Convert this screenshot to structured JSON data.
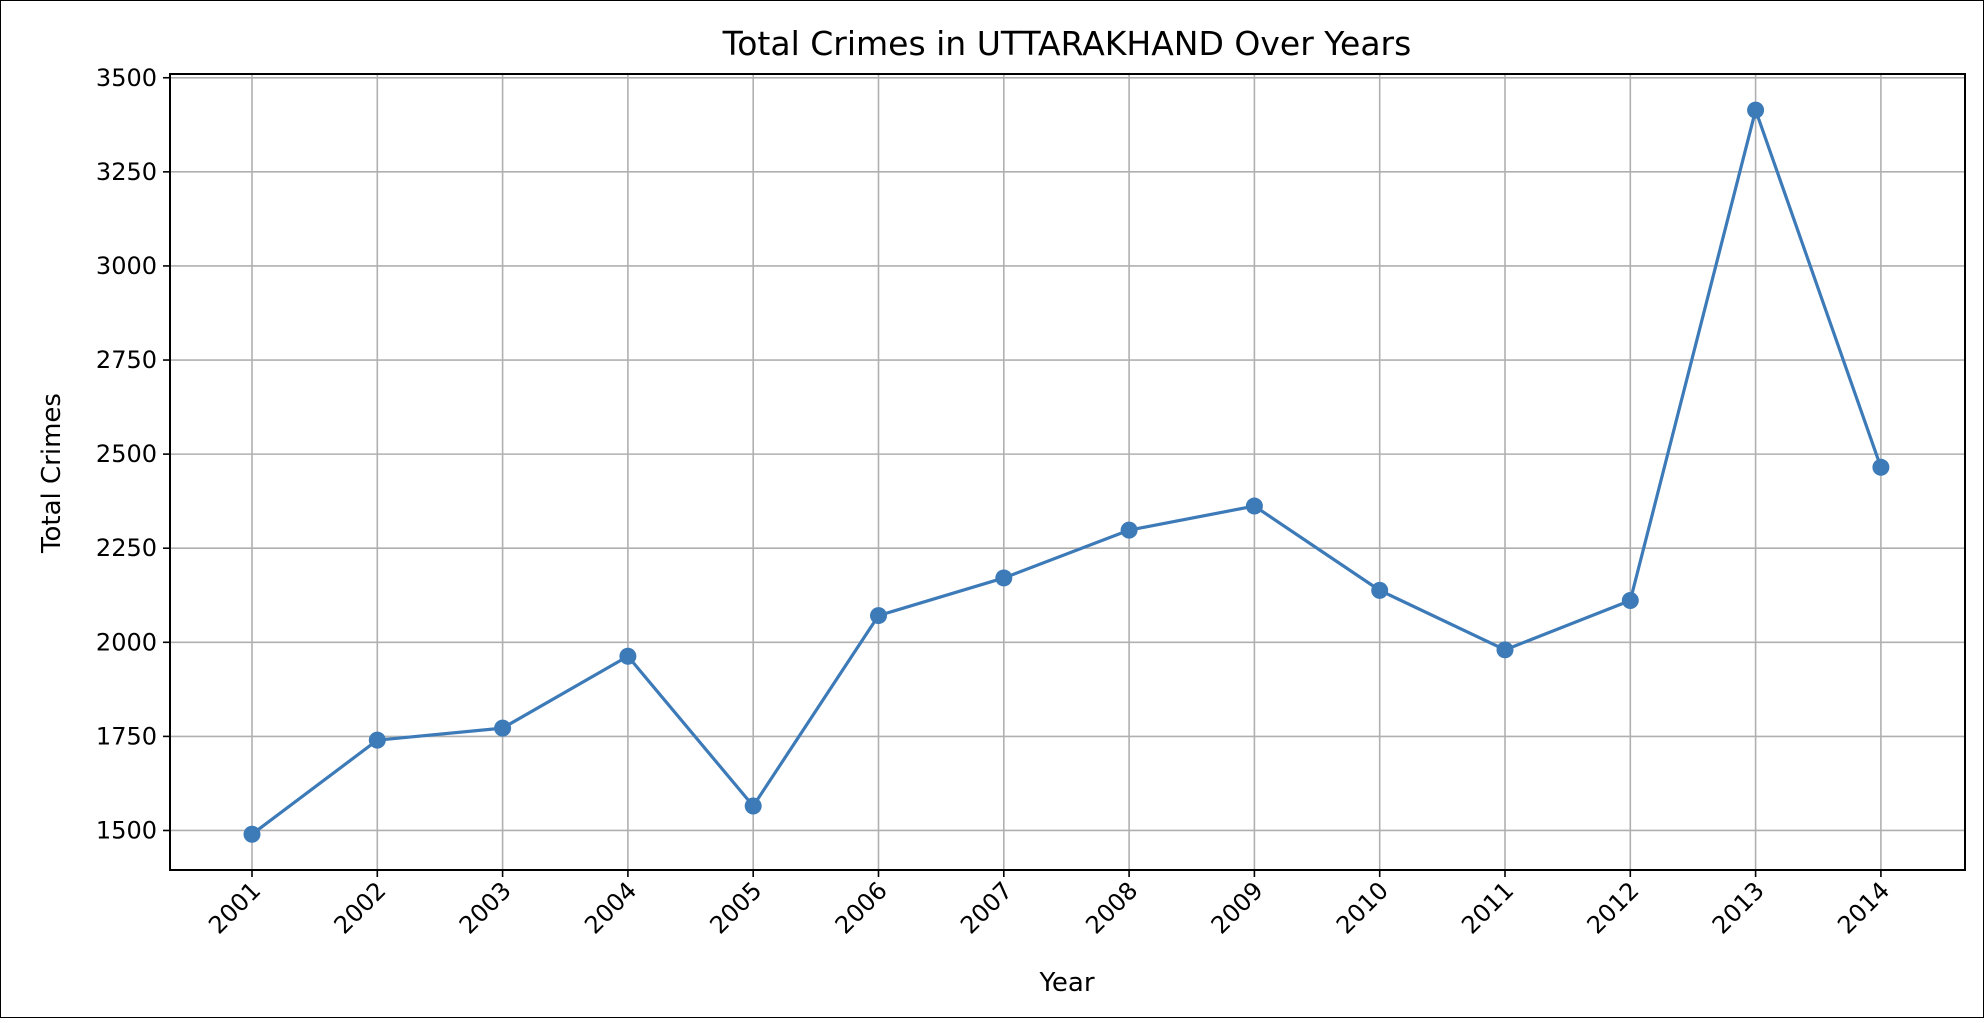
{
  "chart_data": {
    "type": "line",
    "title": "Total Crimes in UTTARAKHAND Over Years",
    "xlabel": "Year",
    "ylabel": "Total Crimes",
    "x": [
      "2001",
      "2002",
      "2003",
      "2004",
      "2005",
      "2006",
      "2007",
      "2008",
      "2009",
      "2010",
      "2011",
      "2012",
      "2013",
      "2014"
    ],
    "series": [
      {
        "values": [
          1490,
          1740,
          1772,
          1963,
          1565,
          2071,
          2171,
          2298,
          2362,
          2138,
          1980,
          2111,
          3414,
          2465
        ],
        "color": "#3d7ab8",
        "marker": "circle"
      }
    ],
    "ylim": [
      1395,
      3510
    ],
    "yticks": [
      1500,
      1750,
      2000,
      2250,
      2500,
      2750,
      3000,
      3250,
      3500
    ],
    "ytick_labels": [
      "1500",
      "1750",
      "2000",
      "2250",
      "2500",
      "2750",
      "3000",
      "3250",
      "3500"
    ],
    "xtick_rotation_deg": 45,
    "grid": true,
    "legend": "none"
  }
}
